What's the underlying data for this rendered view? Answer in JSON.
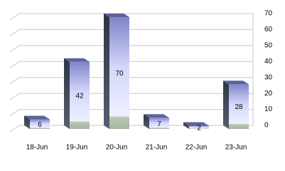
{
  "chart_data": {
    "type": "bar3d",
    "categories": [
      "18-Jun",
      "19-Jun",
      "20-Jun",
      "21-Jun",
      "22-Jun",
      "23-Jun"
    ],
    "values": [
      6,
      42,
      70,
      7,
      2,
      28
    ],
    "color": "#8a8fd6",
    "ylim": [
      0,
      70
    ],
    "yticks": [
      0,
      10,
      20,
      30,
      40,
      50,
      60,
      70
    ],
    "grid": true,
    "y_axis_side": "right"
  }
}
